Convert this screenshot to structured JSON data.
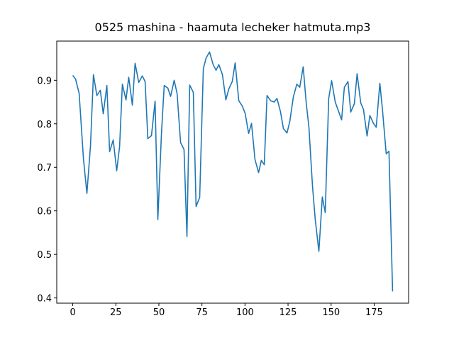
{
  "chart_data": {
    "type": "line",
    "title": "0525 mashina - haamuta lecheker hatmuta.mp3",
    "x": [
      0,
      1.6,
      3.7,
      6.2,
      8.2,
      10.3,
      12,
      14,
      16,
      17.7,
      19.8,
      21.4,
      23.5,
      25.5,
      27.2,
      28.8,
      30.9,
      32.5,
      34.6,
      36.2,
      38.3,
      40.4,
      42,
      43.6,
      45.7,
      47.8,
      49.4,
      51.5,
      53.1,
      55.2,
      56.8,
      58.9,
      60.6,
      62.6,
      64.6,
      66.3,
      67.9,
      70,
      71.6,
      73.7,
      75.8,
      77.4,
      79.4,
      81.5,
      83.2,
      84.8,
      86.9,
      88.9,
      90.6,
      92.6,
      94.3,
      96.4,
      98.4,
      100.1,
      102.1,
      103.8,
      105.8,
      107.9,
      109.5,
      111.2,
      112.8,
      114.9,
      116.9,
      118.6,
      120.6,
      122.3,
      124.4,
      126,
      128.1,
      130.1,
      131.8,
      133.8,
      135.5,
      137.1,
      139.2,
      140.8,
      142.9,
      144.9,
      146.6,
      148.6,
      150.3,
      152.4,
      154.4,
      156.1,
      157.7,
      159.8,
      161.4,
      163.5,
      165.1,
      167.2,
      168.8,
      170.9,
      172.5,
      174.6,
      176.2,
      178.3,
      179.9,
      182,
      183.6,
      185.7
    ],
    "series": [
      {
        "color": "#1f77b4",
        "values": [
          0.911,
          0.903,
          0.87,
          0.72,
          0.64,
          0.75,
          0.913,
          0.865,
          0.877,
          0.823,
          0.888,
          0.736,
          0.763,
          0.692,
          0.748,
          0.891,
          0.855,
          0.907,
          0.843,
          0.939,
          0.895,
          0.91,
          0.897,
          0.766,
          0.773,
          0.852,
          0.58,
          0.778,
          0.888,
          0.882,
          0.863,
          0.9,
          0.869,
          0.757,
          0.741,
          0.541,
          0.889,
          0.872,
          0.61,
          0.631,
          0.926,
          0.951,
          0.965,
          0.936,
          0.923,
          0.936,
          0.913,
          0.855,
          0.88,
          0.897,
          0.94,
          0.853,
          0.841,
          0.824,
          0.778,
          0.801,
          0.718,
          0.688,
          0.716,
          0.706,
          0.865,
          0.853,
          0.85,
          0.858,
          0.828,
          0.789,
          0.779,
          0.805,
          0.862,
          0.891,
          0.884,
          0.931,
          0.85,
          0.793,
          0.657,
          0.58,
          0.507,
          0.632,
          0.596,
          0.858,
          0.899,
          0.85,
          0.828,
          0.809,
          0.884,
          0.897,
          0.827,
          0.846,
          0.915,
          0.848,
          0.833,
          0.772,
          0.819,
          0.801,
          0.792,
          0.893,
          0.829,
          0.731,
          0.737,
          0.415
        ]
      }
    ],
    "xlim": [
      -9.3,
      195
    ],
    "ylim": [
      0.388,
      0.99
    ],
    "xticks": [
      0,
      25,
      50,
      75,
      100,
      125,
      150,
      175
    ],
    "yticks": [
      0.4,
      0.5,
      0.6,
      0.7,
      0.8,
      0.9
    ]
  }
}
